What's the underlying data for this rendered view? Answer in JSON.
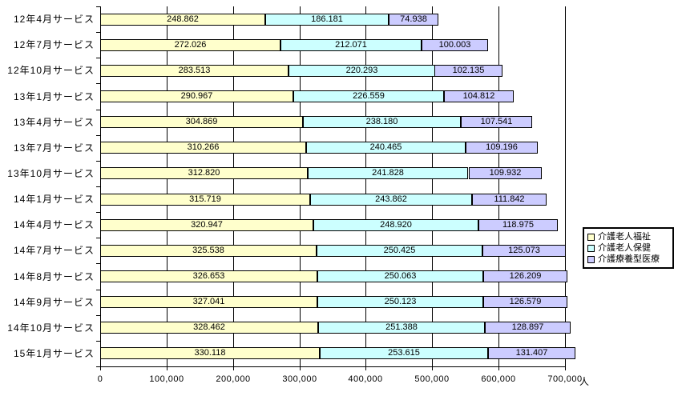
{
  "colors": {
    "background": "#FFFFFF",
    "axis": "#000000",
    "grid": "#000000",
    "bar_border": "#000000",
    "text": "#000000"
  },
  "chart_data": {
    "type": "bar",
    "orientation": "horizontal",
    "stacked": true,
    "title": "",
    "categories": [
      "12年4月サービス",
      "12年7月サービス",
      "12年10月サービス",
      "13年1月サービス",
      "13年4月サービス",
      "13年7月サービス",
      "13年10月サービス",
      "14年1月サービス",
      "14年4月サービス",
      "14年7月サービス",
      "14年8月サービス",
      "14年9月サービス",
      "14年10月サービス",
      "15年1月サービス"
    ],
    "series": [
      {
        "name": "介護老人福祉",
        "color": "#FFFFCC",
        "values": [
          248862,
          272026,
          283513,
          290967,
          304869,
          310266,
          312820,
          315719,
          320947,
          325538,
          326653,
          327041,
          328462,
          330118
        ],
        "labels": [
          "248.862",
          "272.026",
          "283.513",
          "290.967",
          "304.869",
          "310.266",
          "312.820",
          "315.719",
          "320.947",
          "325.538",
          "326.653",
          "327.041",
          "328.462",
          "330.118"
        ]
      },
      {
        "name": "介護老人保健",
        "color": "#CCFFFF",
        "values": [
          186181,
          212071,
          220293,
          226559,
          238180,
          240465,
          241828,
          243862,
          248920,
          250425,
          250063,
          250123,
          251388,
          253615
        ],
        "labels": [
          "186.181",
          "212.071",
          "220.293",
          "226.559",
          "238.180",
          "240.465",
          "241.828",
          "243.862",
          "248.920",
          "250.425",
          "250.063",
          "250.123",
          "251.388",
          "253.615"
        ]
      },
      {
        "name": "介護療養型医療",
        "color": "#CCCCFF",
        "values": [
          74938,
          100003,
          102135,
          104812,
          107541,
          109196,
          109932,
          111842,
          118975,
          125073,
          126209,
          126579,
          128897,
          131407
        ],
        "labels": [
          "74.938",
          "100.003",
          "102.135",
          "104.812",
          "107.541",
          "109.196",
          "109.932",
          "111.842",
          "118.975",
          "125.073",
          "126.209",
          "126.579",
          "128.897",
          "131.407"
        ]
      }
    ],
    "x_axis": {
      "min": 0,
      "max": 700000,
      "tick_interval": 100000,
      "tick_labels": [
        "0",
        "100,000",
        "200,000",
        "300,000",
        "400,000",
        "500,000",
        "600,000",
        "700,000"
      ],
      "unit_label": "人",
      "grid": true
    },
    "legend": {
      "position": "right",
      "entries": [
        "介護老人福祉",
        "介護老人保健",
        "介護療養型医療"
      ]
    }
  }
}
